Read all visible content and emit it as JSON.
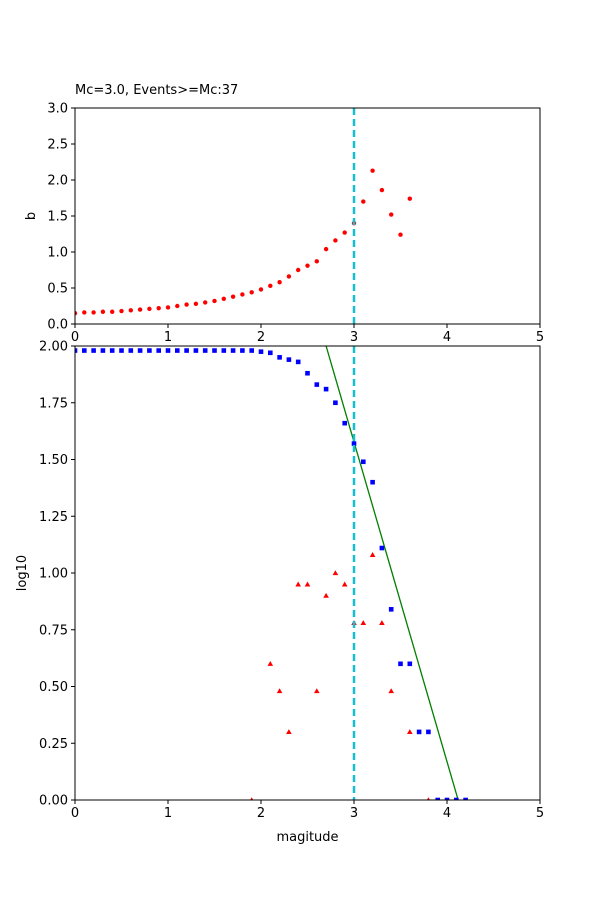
{
  "chart_data": [
    {
      "type": "scatter",
      "title": "Mc=3.0, Events>=Mc:37",
      "xlabel": "",
      "ylabel": "b",
      "xlim": [
        0,
        5
      ],
      "ylim": [
        0,
        3.0
      ],
      "xticks": [
        0,
        1,
        2,
        3,
        4,
        5
      ],
      "xtick_labels": [
        "0",
        "1",
        "2",
        "3",
        "4",
        "5"
      ],
      "yticks": [
        0,
        0.5,
        1.0,
        1.5,
        2.0,
        2.5,
        3.0
      ],
      "ytick_labels": [
        "0.0",
        "0.5",
        "1.0",
        "1.5",
        "2.0",
        "2.5",
        "3.0"
      ],
      "grid": false,
      "mc_line": {
        "x": 3.0,
        "color": "#17becf",
        "style": "dashed"
      },
      "series": [
        {
          "marker": "circle",
          "color": "#ff0000",
          "x": [
            0.0,
            0.1,
            0.2,
            0.3,
            0.4,
            0.5,
            0.6,
            0.7,
            0.8,
            0.9,
            1.0,
            1.1,
            1.2,
            1.3,
            1.4,
            1.5,
            1.6,
            1.7,
            1.8,
            1.9,
            2.0,
            2.1,
            2.2,
            2.3,
            2.4,
            2.5,
            2.6,
            2.7,
            2.8,
            2.9,
            3.0,
            3.1,
            3.2,
            3.3,
            3.4,
            3.5,
            3.6
          ],
          "y": [
            0.15,
            0.16,
            0.16,
            0.17,
            0.17,
            0.18,
            0.19,
            0.2,
            0.21,
            0.22,
            0.23,
            0.25,
            0.27,
            0.28,
            0.3,
            0.32,
            0.35,
            0.38,
            0.41,
            0.44,
            0.48,
            0.53,
            0.58,
            0.66,
            0.75,
            0.81,
            0.87,
            1.04,
            1.16,
            1.27,
            1.4,
            1.7,
            2.13,
            1.86,
            1.52,
            1.24,
            1.74
          ]
        }
      ]
    },
    {
      "type": "scatter",
      "title": "",
      "xlabel": "magitude",
      "ylabel": "log10",
      "xlim": [
        0,
        5
      ],
      "ylim": [
        0,
        2.0
      ],
      "xticks": [
        0,
        1,
        2,
        3,
        4,
        5
      ],
      "xtick_labels": [
        "0",
        "1",
        "2",
        "3",
        "4",
        "5"
      ],
      "yticks": [
        0,
        0.25,
        0.5,
        0.75,
        1.0,
        1.25,
        1.5,
        1.75,
        2.0
      ],
      "ytick_labels": [
        "0.00",
        "0.25",
        "0.50",
        "0.75",
        "1.00",
        "1.25",
        "1.50",
        "1.75",
        "2.00"
      ],
      "grid": false,
      "mc_line": {
        "x": 3.0,
        "color": "#17becf",
        "style": "dashed"
      },
      "fit_line": {
        "color": "#008000",
        "x": [
          2.7,
          4.12
        ],
        "y": [
          2.0,
          0.0
        ]
      },
      "series": [
        {
          "marker": "square",
          "color": "#0000ff",
          "x": [
            0.0,
            0.1,
            0.2,
            0.3,
            0.4,
            0.5,
            0.6,
            0.7,
            0.8,
            0.9,
            1.0,
            1.1,
            1.2,
            1.3,
            1.4,
            1.5,
            1.6,
            1.7,
            1.8,
            1.9,
            2.0,
            2.1,
            2.2,
            2.3,
            2.4,
            2.5,
            2.6,
            2.7,
            2.8,
            2.9,
            3.0,
            3.1,
            3.2,
            3.3,
            3.4,
            3.5,
            3.6,
            3.7,
            3.8,
            3.9,
            4.0,
            4.1,
            4.2
          ],
          "y": [
            1.98,
            1.98,
            1.98,
            1.98,
            1.98,
            1.98,
            1.98,
            1.98,
            1.98,
            1.98,
            1.98,
            1.98,
            1.98,
            1.98,
            1.98,
            1.98,
            1.98,
            1.98,
            1.98,
            1.98,
            1.975,
            1.97,
            1.95,
            1.94,
            1.93,
            1.88,
            1.83,
            1.81,
            1.75,
            1.66,
            1.57,
            1.49,
            1.4,
            1.11,
            0.84,
            0.6,
            0.6,
            0.3,
            0.3,
            0.0,
            0.0,
            0.0,
            0.0
          ]
        },
        {
          "marker": "triangle",
          "color": "#ff0000",
          "x": [
            1.9,
            2.1,
            2.2,
            2.3,
            2.4,
            2.5,
            2.6,
            2.7,
            2.8,
            2.9,
            3.0,
            3.1,
            3.2,
            3.3,
            3.4,
            3.6,
            3.8
          ],
          "y": [
            0.0,
            0.6,
            0.48,
            0.3,
            0.95,
            0.95,
            0.48,
            0.9,
            1.0,
            0.95,
            0.78,
            0.78,
            1.08,
            0.78,
            0.48,
            0.3,
            0.0
          ]
        }
      ]
    }
  ]
}
